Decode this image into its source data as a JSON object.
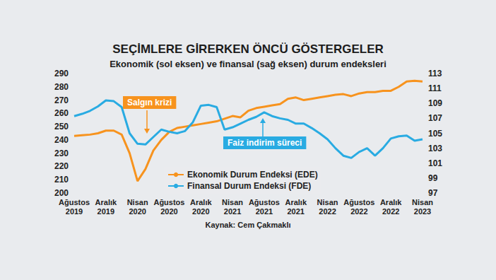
{
  "chart_data": {
    "type": "line",
    "title": "SEÇİMLERE GİRERKEN ÖNCÜ GÖSTERGELER",
    "subtitle": "Ekonomik (sol eksen) ve finansal (sağ eksen) durum endeksleri",
    "source": "Kaynak: Cem Çakmaklı",
    "categories": [
      "Ağustos\n2019",
      null,
      null,
      null,
      "Aralık\n2019",
      null,
      null,
      null,
      "Nisan\n2020",
      null,
      null,
      null,
      "Ağustos\n2020",
      null,
      null,
      null,
      "Aralık\n2020",
      null,
      null,
      null,
      "Nisan\n2021",
      null,
      null,
      null,
      "Ağustos\n2021",
      null,
      null,
      null,
      "Aralık\n2021",
      null,
      null,
      null,
      "Nisan\n2022",
      null,
      null,
      null,
      "Ağustos\n2022",
      null,
      null,
      null,
      "Aralık\n2022",
      null,
      null,
      null,
      "Nisan\n2023"
    ],
    "series": [
      {
        "name": "Ekonomik Durum Endeksi (EDE)",
        "color": "#f7931e",
        "axis": "y",
        "values": [
          243,
          243.5,
          244,
          245,
          247,
          247,
          244,
          230,
          209,
          218,
          232,
          240,
          246,
          249,
          250,
          251,
          252,
          253,
          254,
          256,
          258,
          257,
          262,
          264,
          265,
          266,
          267,
          271,
          272,
          270,
          271,
          272,
          273,
          274,
          274.5,
          273,
          275,
          276,
          276,
          277,
          277,
          280,
          284,
          284.5,
          284
        ]
      },
      {
        "name": "Finansal Durum Endeksi (FDE)",
        "color": "#29abe2",
        "axis": "y2",
        "values": [
          107.3,
          107.6,
          108,
          108.6,
          109.4,
          109.3,
          108.5,
          105,
          103.6,
          103.5,
          104.5,
          105.5,
          105.2,
          105,
          105.3,
          106.5,
          108.7,
          108.8,
          108.5,
          105.5,
          105.8,
          106.3,
          106.8,
          107.2,
          107.8,
          107.3,
          107,
          106.8,
          106.3,
          106.3,
          105.7,
          105,
          104.2,
          103,
          102,
          101.7,
          102.5,
          103,
          102,
          103,
          104.3,
          104.6,
          104.7,
          104,
          104.2
        ]
      }
    ],
    "ylim": [
      200,
      290
    ],
    "yticks": [
      200,
      210,
      220,
      230,
      240,
      250,
      260,
      270,
      280,
      290
    ],
    "y2lim": [
      97,
      113
    ],
    "y2ticks": [
      97,
      99,
      101,
      103,
      105,
      107,
      109,
      111,
      113
    ],
    "annotations": [
      {
        "text": "Salgın krizi"
      },
      {
        "text": "Faiz indirim süreci"
      }
    ],
    "grid": false,
    "legend": "bottom"
  }
}
